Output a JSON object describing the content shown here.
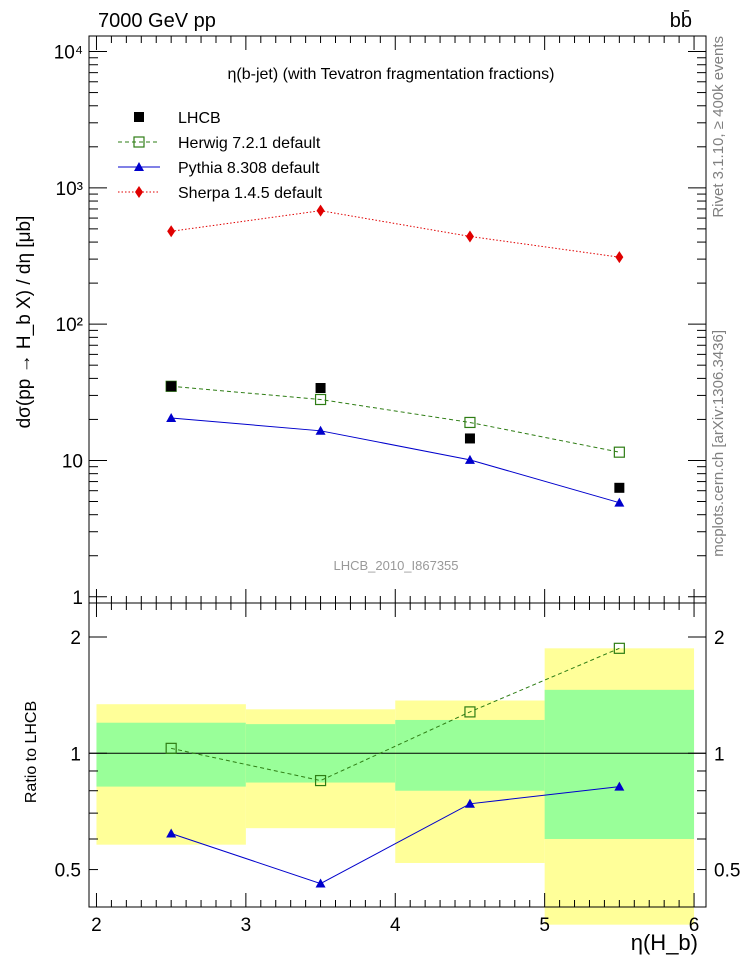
{
  "header": {
    "energy_label": "7000 GeV pp",
    "process_label": "bb̄"
  },
  "side_text": {
    "rivet": "Rivet 3.1.10, ≥ 400k events",
    "source": "mcplots.cern.ch [arXiv:1306.3436]"
  },
  "chart_data": [
    {
      "type": "line",
      "title": "η(b-jet) (with Tevatron fragmentation fractions)",
      "ylabel": "dσ(pp → H_b X) / dη [μb]",
      "yscale": "log",
      "ylim": [
        0.9,
        13000
      ],
      "xlim": [
        1.95,
        6.08
      ],
      "ytick_labels": [
        "1",
        "10",
        "10²",
        "10³",
        "10⁴"
      ],
      "watermark": "LHCB_2010_I867355",
      "legend_position": "top-left",
      "x": [
        2.5,
        3.5,
        4.5,
        5.5
      ],
      "series": [
        {
          "name": "LHCB",
          "marker": "filled-square",
          "color": "#000000",
          "values": [
            35,
            34,
            14.5,
            6.3
          ]
        },
        {
          "name": "Herwig 7.2.1 default",
          "marker": "open-square",
          "line": "dashed",
          "color": "#2e7d14",
          "values": [
            35,
            28,
            19,
            11.5
          ]
        },
        {
          "name": "Pythia 8.308 default",
          "marker": "triangle",
          "line": "solid",
          "color": "#0000cc",
          "values": [
            20.5,
            16.5,
            10.1,
            4.9
          ]
        },
        {
          "name": "Sherpa 1.4.5 default",
          "marker": "diamond",
          "line": "dotted",
          "color": "#e00000",
          "values": [
            480,
            680,
            440,
            310
          ]
        }
      ]
    },
    {
      "type": "line",
      "ylabel": "Ratio to LHCB",
      "xlabel": "η(H_b)",
      "yscale": "log",
      "ylim": [
        0.4,
        2.45
      ],
      "xlim": [
        1.95,
        6.08
      ],
      "xtick_labels": [
        "2",
        "3",
        "4",
        "5",
        "6"
      ],
      "ytick_labels": [
        "0.5",
        "1",
        "2"
      ],
      "bands": {
        "bins": [
          [
            2,
            3
          ],
          [
            3,
            4
          ],
          [
            4,
            5
          ],
          [
            5,
            6
          ]
        ],
        "outer_color": "#ffff99",
        "inner_color": "#99ff99",
        "outer": [
          [
            0.58,
            1.34
          ],
          [
            0.64,
            1.3
          ],
          [
            0.52,
            1.37
          ],
          [
            0.36,
            1.87
          ]
        ],
        "inner": [
          [
            0.82,
            1.2
          ],
          [
            0.84,
            1.19
          ],
          [
            0.8,
            1.22
          ],
          [
            0.6,
            1.46
          ]
        ]
      },
      "series": [
        {
          "name": "Herwig 7.2.1 default",
          "color": "#2e7d14",
          "values": [
            1.03,
            0.85,
            1.28,
            1.87
          ]
        },
        {
          "name": "Pythia 8.308 default",
          "color": "#0000cc",
          "values": [
            0.62,
            0.46,
            0.74,
            0.82
          ]
        }
      ]
    }
  ]
}
